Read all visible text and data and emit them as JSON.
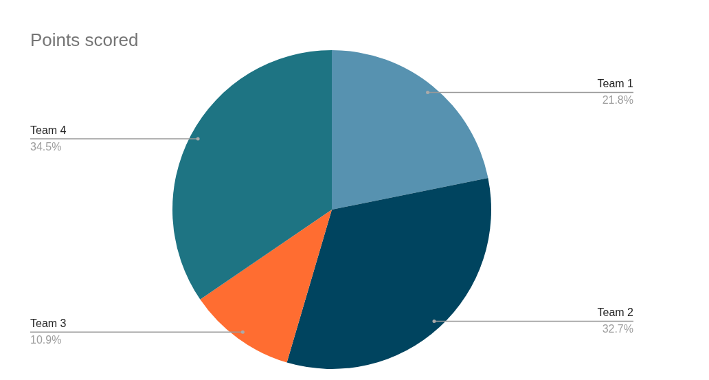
{
  "chart_data": {
    "type": "pie",
    "title": "Points scored",
    "categories": [
      "Team 1",
      "Team 2",
      "Team 3",
      "Team 4"
    ],
    "values": [
      21.8,
      32.7,
      10.9,
      34.5
    ],
    "value_labels": [
      "21.8%",
      "32.7%",
      "10.9%",
      "34.5%"
    ],
    "colors": [
      "#5792b0",
      "#00445f",
      "#ff6d31",
      "#1e7483"
    ]
  }
}
